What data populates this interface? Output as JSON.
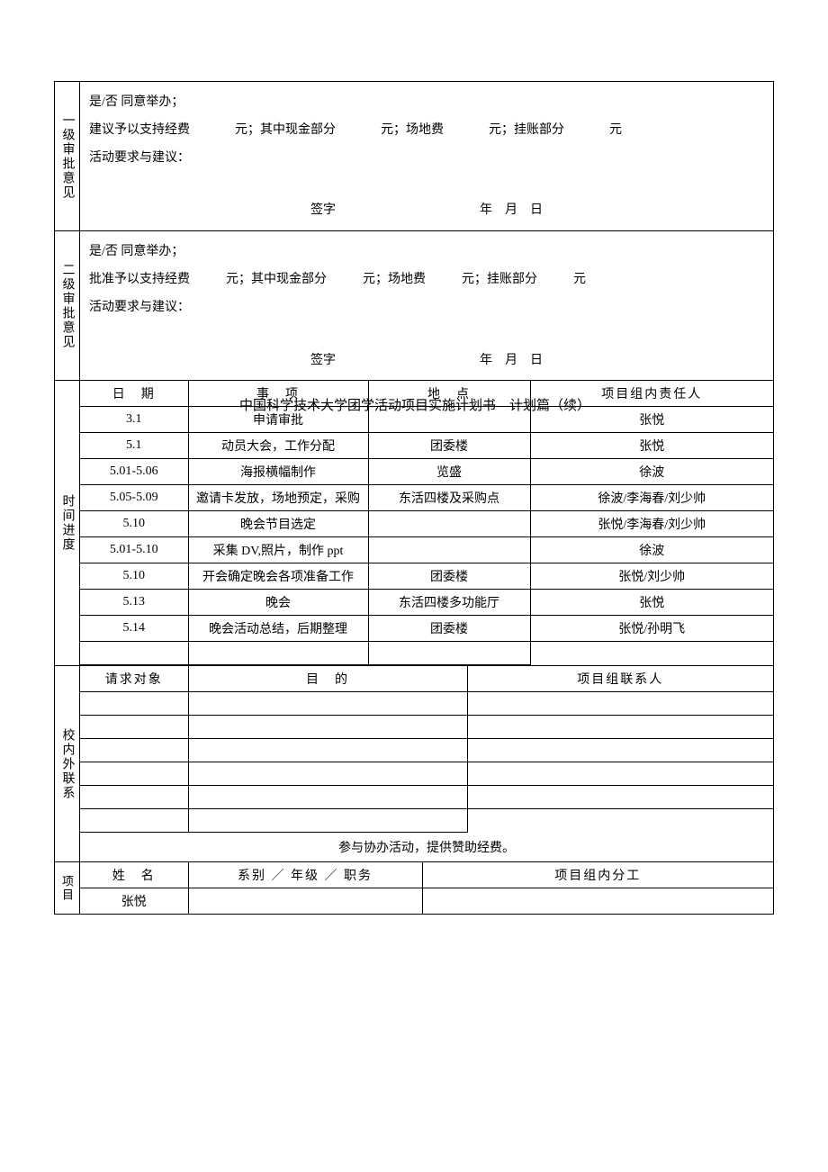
{
  "approval1": {
    "label": "一级审批意见",
    "line1": "是/否  同意举办；",
    "line2_parts": [
      "建议予以支持经费",
      "元；其中现金部分",
      "元；场地费",
      "元；挂账部分",
      "元"
    ],
    "line3": "活动要求与建议：",
    "sig_label": "签字",
    "date_label": "年　月　日"
  },
  "approval2": {
    "label": "二级审批意见",
    "line1": "是/否  同意举办；",
    "line2_parts": [
      "批准予以支持经费",
      "元；其中现金部分",
      "元；场地费",
      "元；挂账部分",
      "元"
    ],
    "line3": "活动要求与建议：",
    "sig_label": "签字",
    "date_label": "年　月　日"
  },
  "doc_title": "中国科学技术大学团学活动项目实施计划书　计划篇（续）",
  "schedule": {
    "label": "时间进度",
    "headers": [
      "日　期",
      "事　项",
      "地　点",
      "项目组内责任人"
    ],
    "rows": [
      {
        "date": "3.1",
        "item": "申请审批",
        "place": "",
        "person": "张悦"
      },
      {
        "date": "5.1",
        "item": "动员大会，工作分配",
        "place": "团委楼",
        "person": "张悦"
      },
      {
        "date": "5.01-5.06",
        "item": "海报横幅制作",
        "place": "览盛",
        "person": "徐波"
      },
      {
        "date": "5.05-5.09",
        "item": "邀请卡发放，场地预定，采购",
        "place": "东活四楼及采购点",
        "person": "徐波/李海春/刘少帅"
      },
      {
        "date": "5.10",
        "item": "晚会节目选定",
        "place": "",
        "person": "张悦/李海春/刘少帅"
      },
      {
        "date": "5.01-5.10",
        "item": "采集 DV,照片，制作 ppt",
        "place": "",
        "person": "徐波"
      },
      {
        "date": "5.10",
        "item": "开会确定晚会各项准备工作",
        "place": "团委楼",
        "person": "张悦/刘少帅"
      },
      {
        "date": "5.13",
        "item": "晚会",
        "place": "东活四楼多功能厅",
        "person": "张悦"
      },
      {
        "date": "5.14",
        "item": "晚会活动总结，后期整理",
        "place": "团委楼",
        "person": "张悦/孙明飞"
      }
    ]
  },
  "liaison": {
    "label": "校内外联系",
    "headers": [
      "请求对象",
      "目　的",
      "项目组联系人"
    ],
    "note": "参与协办活动，提供赞助经费。"
  },
  "team": {
    "label_left": "项目",
    "headers": [
      "姓　名",
      "系别 ／ 年级 ／ 职务",
      "项目组内分工"
    ],
    "rows": [
      {
        "name": "张悦",
        "dept": "",
        "role": ""
      }
    ]
  },
  "col_widths": {
    "c1": 120,
    "c2": 200,
    "c3": 180,
    "c4": 170
  }
}
